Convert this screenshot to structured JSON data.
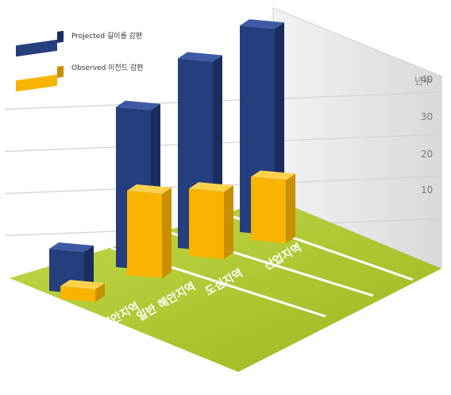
{
  "chart_data": {
    "type": "bar",
    "categories": [
      "산간 및 해안지역",
      "일반 해안지역",
      "도심지역",
      "산업지역"
    ],
    "series": [
      {
        "name": "Projected 길이를 감편",
        "values": [
          10,
          38,
          45,
          49
        ]
      },
      {
        "name": "Observed 이전드 감편",
        "values": [
          3,
          20,
          16,
          15
        ]
      }
    ],
    "ylabel": "년수",
    "yticks": [
      10,
      20,
      30,
      40
    ],
    "ylim": [
      0,
      50
    ],
    "legend_position": "top-left",
    "colors": {
      "projected": "#253e7e",
      "observed": "#f8b400",
      "floor": "#a6c62a",
      "floor_stripe": "#ffffff"
    }
  }
}
